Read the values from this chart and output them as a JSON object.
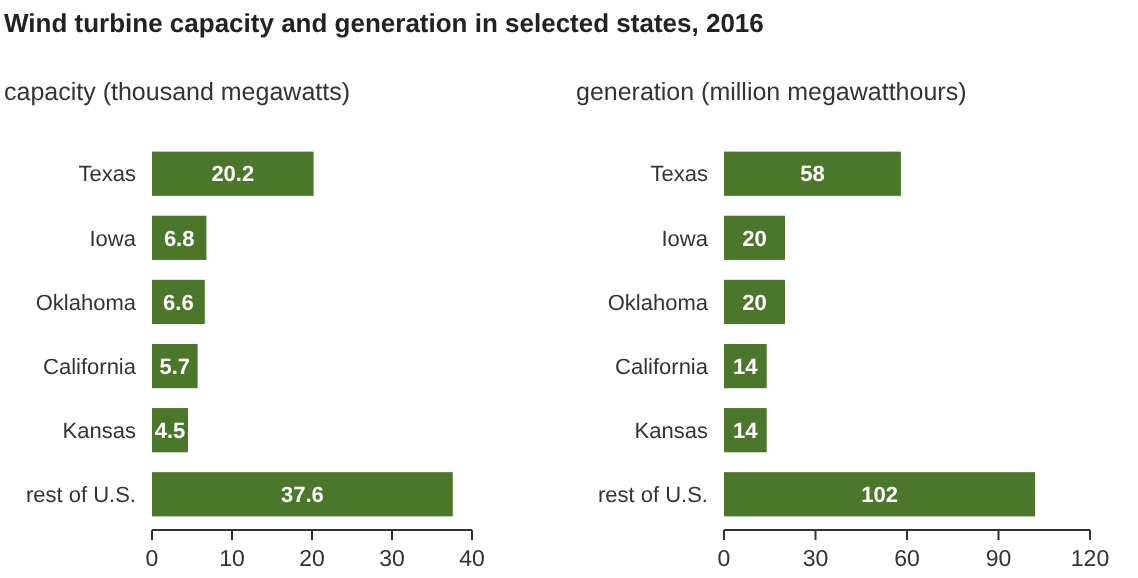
{
  "chart_data": [
    {
      "type": "bar",
      "orientation": "horizontal",
      "title": "Wind turbine capacity and generation in selected states, 2016",
      "subtitle": "capacity (thousand megawatts)",
      "categories": [
        "Texas",
        "Iowa",
        "Oklahoma",
        "California",
        "Kansas",
        "rest of U.S."
      ],
      "values": [
        20.2,
        6.8,
        6.6,
        5.7,
        4.5,
        37.6
      ],
      "color": "#4a7729",
      "xlim": [
        0,
        40
      ],
      "xticks": [
        0,
        10,
        20,
        30,
        40
      ],
      "data_labels": true
    },
    {
      "type": "bar",
      "orientation": "horizontal",
      "subtitle": "generation (million megawatthours)",
      "categories": [
        "Texas",
        "Iowa",
        "Oklahoma",
        "California",
        "Kansas",
        "rest of U.S."
      ],
      "values": [
        58,
        20,
        20,
        14,
        14,
        102
      ],
      "color": "#4a7729",
      "xlim": [
        0,
        120
      ],
      "xticks": [
        0,
        30,
        60,
        90,
        120
      ],
      "data_labels": true
    }
  ]
}
